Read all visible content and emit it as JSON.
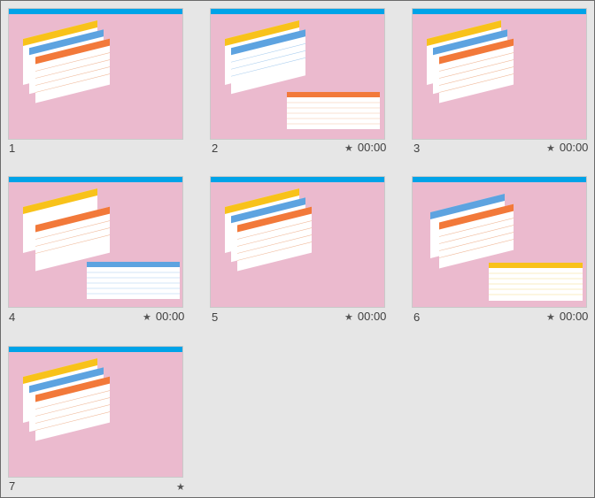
{
  "slides": [
    {
      "number": "1",
      "has_star": false,
      "time": "",
      "preview": "stacked-tables"
    },
    {
      "number": "2",
      "has_star": true,
      "time": "00:00",
      "preview": "stacked-tables-orange-popup"
    },
    {
      "number": "3",
      "has_star": true,
      "time": "00:00",
      "preview": "stacked-tables"
    },
    {
      "number": "4",
      "has_star": true,
      "time": "00:00",
      "preview": "stacked-tables-blue-popup"
    },
    {
      "number": "5",
      "has_star": true,
      "time": "00:00",
      "preview": "stacked-tables"
    },
    {
      "number": "6",
      "has_star": true,
      "time": "00:00",
      "preview": "stacked-tables-yellow-popup"
    },
    {
      "number": "7",
      "has_star": true,
      "time": "",
      "preview": "stacked-tables"
    }
  ],
  "colors": {
    "background": "#e6e6e6",
    "slide_background": "#ebbace",
    "slide_topbar": "#00a3e8",
    "table_yellow": "#f8c21a",
    "table_blue": "#5da3e0",
    "table_orange": "#f2793a"
  },
  "icons": {
    "animation": "star-icon"
  }
}
